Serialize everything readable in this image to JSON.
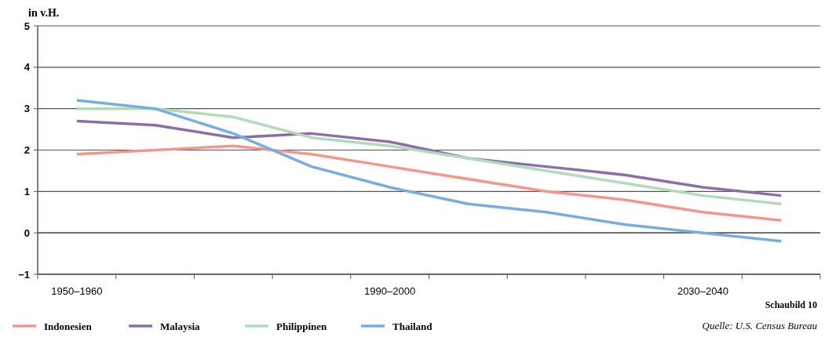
{
  "chart_data": {
    "type": "line",
    "ylabel": "in v.H.",
    "categories": [
      "1950–1960",
      null,
      null,
      null,
      "1990–2000",
      null,
      null,
      null,
      "2030–2040",
      null
    ],
    "series": [
      {
        "name": "Indonesien",
        "color": "#f4978b",
        "values": [
          1.9,
          2.0,
          2.1,
          1.9,
          1.6,
          1.3,
          1.0,
          0.8,
          0.5,
          0.3
        ]
      },
      {
        "name": "Malaysia",
        "color": "#8d6fa8",
        "values": [
          2.7,
          2.6,
          2.3,
          2.4,
          2.2,
          1.8,
          1.6,
          1.4,
          1.1,
          0.9
        ]
      },
      {
        "name": "Philippinen",
        "color": "#b2dbbc",
        "values": [
          3.0,
          3.0,
          2.8,
          2.3,
          2.1,
          1.8,
          1.5,
          1.2,
          0.9,
          0.7
        ]
      },
      {
        "name": "Thailand",
        "color": "#78ade0",
        "values": [
          3.2,
          3.0,
          2.4,
          1.6,
          1.1,
          0.7,
          0.5,
          0.2,
          0.0,
          -0.2
        ]
      }
    ],
    "ylim": [
      -1,
      5
    ],
    "yticks": [
      -1,
      0,
      1,
      2,
      3,
      4,
      5
    ],
    "grid": "y",
    "legend": "bottom",
    "marker": "none",
    "line_style": "solid",
    "annotations": [
      "Schaubild 10",
      "Quelle: U.S. Census Bureau"
    ]
  }
}
